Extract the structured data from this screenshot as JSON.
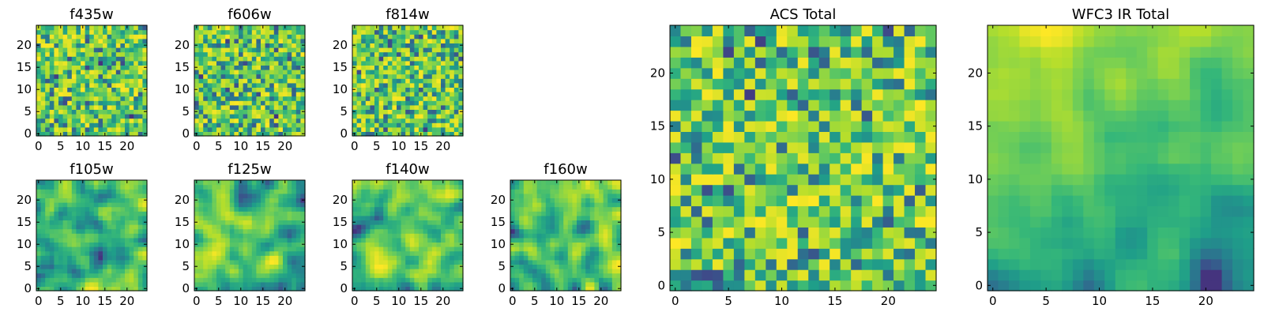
{
  "chart_data": [
    {
      "type": "heatmap",
      "title": "f435w",
      "x_ticks": [
        "0",
        "5",
        "10",
        "15",
        "20"
      ],
      "y_ticks": [
        "0",
        "5",
        "10",
        "15",
        "20"
      ],
      "xlim": [
        -0.5,
        24.5
      ],
      "ylim": [
        -0.5,
        24.5
      ],
      "colormap": "viridis",
      "grid_size": 25,
      "pattern": "noise",
      "seed": 11
    },
    {
      "type": "heatmap",
      "title": "f606w",
      "x_ticks": [
        "0",
        "5",
        "10",
        "15",
        "20"
      ],
      "y_ticks": [
        "0",
        "5",
        "10",
        "15",
        "20"
      ],
      "xlim": [
        -0.5,
        24.5
      ],
      "ylim": [
        -0.5,
        24.5
      ],
      "colormap": "viridis",
      "grid_size": 25,
      "pattern": "noise",
      "seed": 23
    },
    {
      "type": "heatmap",
      "title": "f814w",
      "x_ticks": [
        "0",
        "5",
        "10",
        "15",
        "20"
      ],
      "y_ticks": [
        "0",
        "5",
        "10",
        "15",
        "20"
      ],
      "xlim": [
        -0.5,
        24.5
      ],
      "ylim": [
        -0.5,
        24.5
      ],
      "colormap": "viridis",
      "grid_size": 25,
      "pattern": "noise",
      "seed": 37
    },
    {
      "type": "heatmap",
      "title": "f105w",
      "x_ticks": [
        "0",
        "5",
        "10",
        "15",
        "20"
      ],
      "y_ticks": [
        "0",
        "5",
        "10",
        "15",
        "20"
      ],
      "xlim": [
        -0.5,
        24.5
      ],
      "ylim": [
        -0.5,
        24.5
      ],
      "colormap": "viridis",
      "grid_size": 25,
      "pattern": "smooth",
      "seed": 41
    },
    {
      "type": "heatmap",
      "title": "f125w",
      "x_ticks": [
        "0",
        "5",
        "10",
        "15",
        "20"
      ],
      "y_ticks": [
        "0",
        "5",
        "10",
        "15",
        "20"
      ],
      "xlim": [
        -0.5,
        24.5
      ],
      "ylim": [
        -0.5,
        24.5
      ],
      "colormap": "viridis",
      "grid_size": 25,
      "pattern": "smooth",
      "seed": 53
    },
    {
      "type": "heatmap",
      "title": "f140w",
      "x_ticks": [
        "0",
        "5",
        "10",
        "15",
        "20"
      ],
      "y_ticks": [
        "0",
        "5",
        "10",
        "15",
        "20"
      ],
      "xlim": [
        -0.5,
        24.5
      ],
      "ylim": [
        -0.5,
        24.5
      ],
      "colormap": "viridis",
      "grid_size": 25,
      "pattern": "smooth",
      "seed": 67
    },
    {
      "type": "heatmap",
      "title": "f160w",
      "x_ticks": [
        "0",
        "5",
        "10",
        "15",
        "20"
      ],
      "y_ticks": [
        "0",
        "5",
        "10",
        "15",
        "20"
      ],
      "xlim": [
        -0.5,
        24.5
      ],
      "ylim": [
        -0.5,
        24.5
      ],
      "colormap": "viridis",
      "grid_size": 25,
      "pattern": "smooth",
      "seed": 79
    },
    {
      "type": "heatmap",
      "title": "ACS Total",
      "x_ticks": [
        "0",
        "5",
        "10",
        "15",
        "20"
      ],
      "y_ticks": [
        "0",
        "5",
        "10",
        "15",
        "20"
      ],
      "xlim": [
        -0.5,
        24.5
      ],
      "ylim": [
        -0.5,
        24.5
      ],
      "colormap": "viridis",
      "grid_size": 25,
      "pattern": "noise",
      "seed": 97
    },
    {
      "type": "heatmap",
      "title": "WFC3 IR Total",
      "x_ticks": [
        "0",
        "5",
        "10",
        "15",
        "20"
      ],
      "y_ticks": [
        "0",
        "5",
        "10",
        "15",
        "20"
      ],
      "xlim": [
        -0.5,
        24.5
      ],
      "ylim": [
        -0.5,
        24.5
      ],
      "colormap": "viridis",
      "grid_size": 25,
      "pattern": "smooth-gradient",
      "seed": 131
    }
  ]
}
